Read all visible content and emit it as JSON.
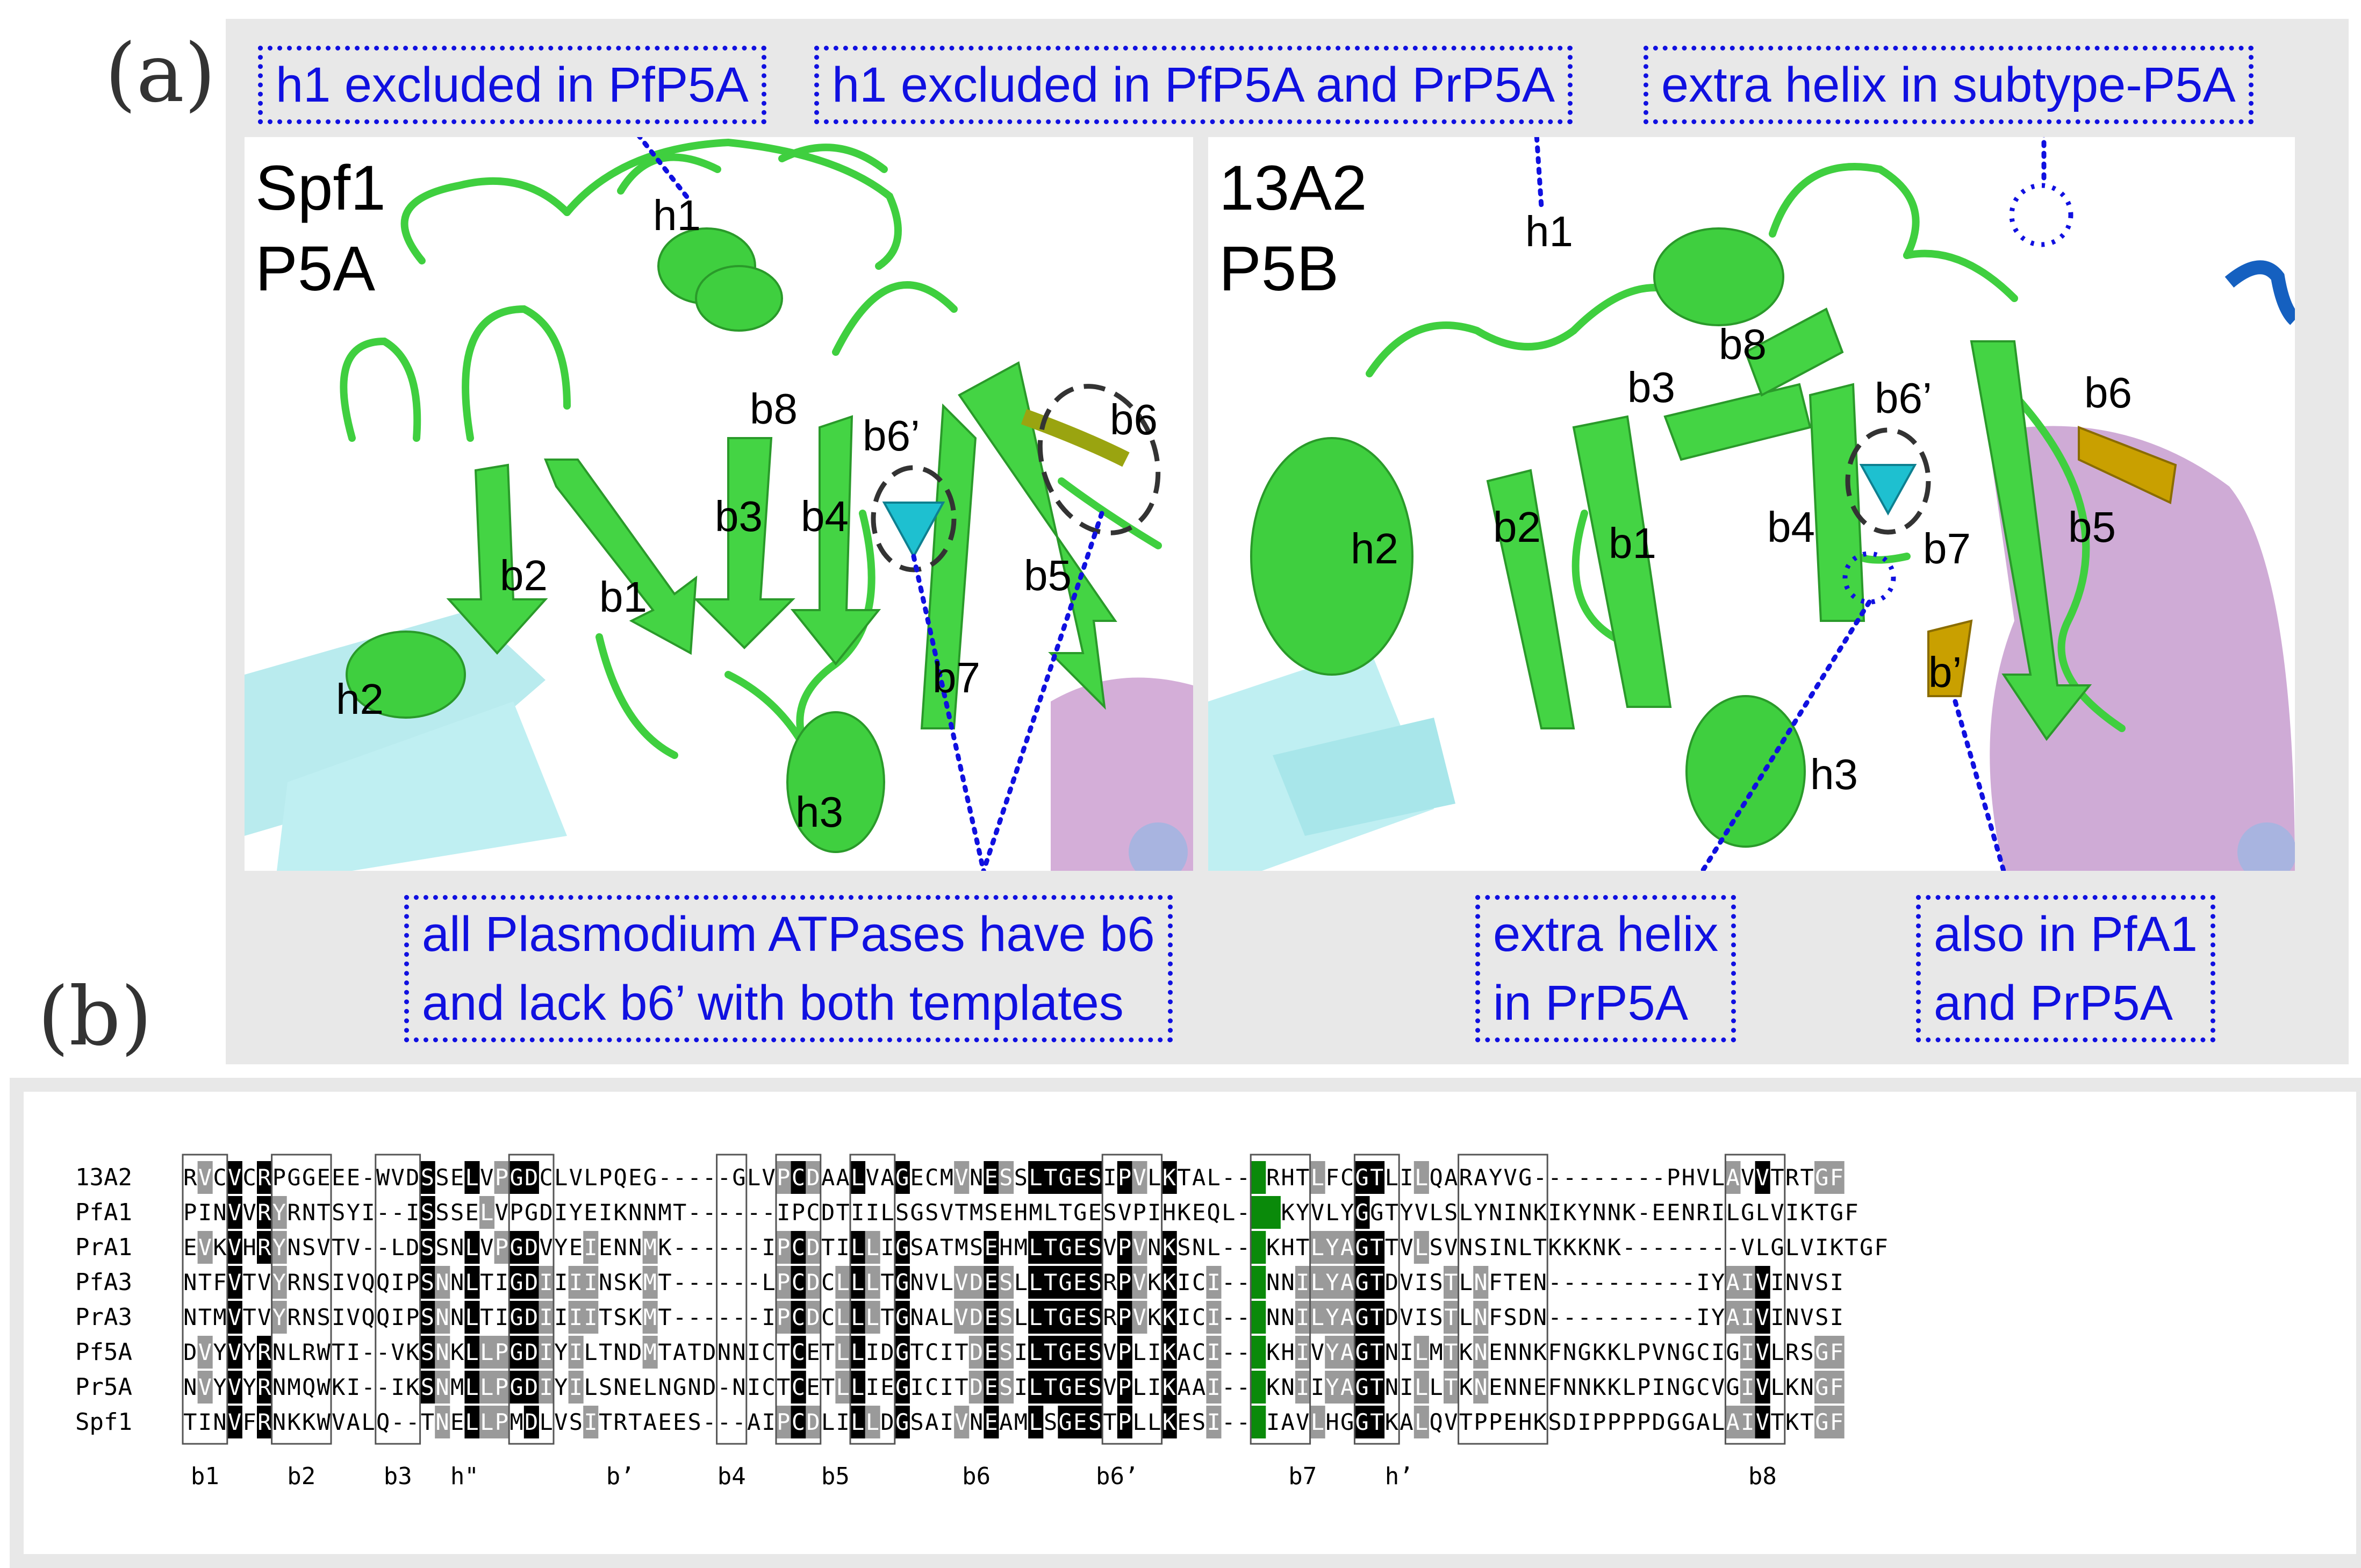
{
  "panel_a": {
    "label": "(a)",
    "callouts": [
      "h1 excluded in PfP5A",
      "h1 excluded in PfP5A and PrP5A",
      "extra helix in subtype-P5A",
      "all Plasmodium ATPases have b6",
      "and lack b6’ with both templates",
      "extra helix",
      "in PrP5A",
      "also in PfA1",
      "and PrP5A"
    ],
    "left_structure": {
      "title1": "Spf1",
      "title2": "P5A",
      "labels": [
        "h1",
        "b8",
        "b6’",
        "b6",
        "b2",
        "b1",
        "b3",
        "b4",
        "b5",
        "b7",
        "h2",
        "h3"
      ]
    },
    "right_structure": {
      "title1": "13A2",
      "title2": "P5B",
      "labels": [
        "h1",
        "b8",
        "b3",
        "b6’",
        "b6",
        "h2",
        "b2",
        "b1",
        "b4",
        "b7",
        "b5",
        "b’",
        "h3"
      ]
    }
  },
  "panel_b": {
    "label": "(b)",
    "rows": [
      {
        "name": "13A2",
        "seq": "RVCVCRPGGEEE-WVDSSELVPGDCLVLPQEG-----GLVPCDAALVAGECMVNESSLTGESIPVLKTAL---RHTLFCGTLILQARAYVG---------PHVLAVVTRTGF"
      },
      {
        "name": "PfA1",
        "seq": "PINVVRYRNTSYI--ISSSELVPGDIYEIKNNMT------IPCDTIILSGSVTMSEHMLTGESVPIHKEQL---KYVLYGGTYVLSLYNINKIKYNNK-EENRILGLVIKTGF"
      },
      {
        "name": "PrA1",
        "seq": "EVKVHRYNSVTV--LDSSNLVPGDVYEIENNMK------IPCDTILLIGSATMSEHMLTGESVPVNKSNL---KHTLYAGTTVLSVNSINLTKKKNK--------VLGLVIKTGF"
      },
      {
        "name": "PfA3",
        "seq": "NTFVTVYRNSIVQQIPSNNLTIGDIIIINSKMT------LPCDCLLLTGNVLVDESLLTGESRPVKKICI---NNILYAGTDVISTLNFTEN----------IYAIVINVSI"
      },
      {
        "name": "PrA3",
        "seq": "NTMVTVYRNSIVQQIPSNNLTIGDIIIITSKMT------IPCDCLLLTGNALVDESLLTGESRPVKKICI---NNILYAGTDVISTLNFSDN----------IYAIVINVSI"
      },
      {
        "name": "Pf5A",
        "seq": "DVYVYRNLRWTI--VKSNKLLPGDIYILTNDMTATDNNICTCETLLIDGTCITDESILTGESVPLIKACI---KHIVYAGTNILMTKNENNKFNGKKLPVNGCIGIVLRSGF"
      },
      {
        "name": "Pr5A",
        "seq": "NVYVYRNMQWKI--IKSNMLLPGDIYILSNELNGND-NICTCETLLIEGICITDESILTGESVPLIKAAI---KNIIYAGTNILLTKNENNEFNNKKLPINGCVGIVLKNGF"
      },
      {
        "name": "Spf1",
        "seq": "TINVFRNKKWVALQ--TNELLPMDLVSITRTAEES---AIPCDLILLDGSAIVNEAMLSGESTPLLKESI---IAVLHGGTKALQVTPPEHKSDIPPPPDGGALAIVTKTGF"
      }
    ],
    "footer": [
      "b1",
      "b2",
      "b3",
      "h\"",
      "b’",
      "b4",
      "b5",
      "b6",
      "b6’",
      "b7",
      "h’",
      "b8"
    ]
  }
}
